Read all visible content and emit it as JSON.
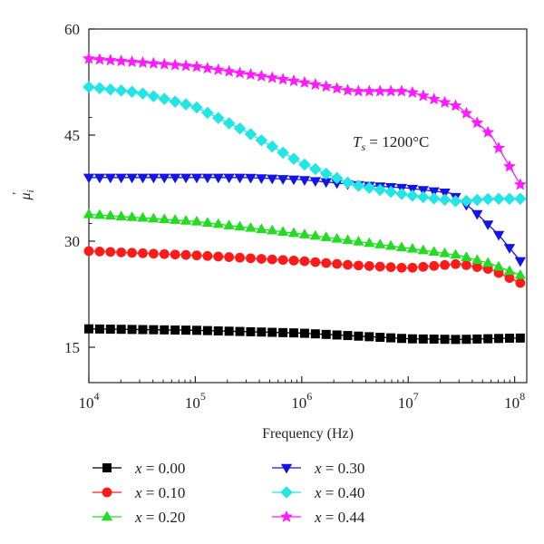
{
  "chart_data": {
    "type": "line",
    "xscale": "log",
    "xlim": [
      10000,
      130000000
    ],
    "ylim": [
      10,
      60
    ],
    "xlabel": "Frequency (Hz)",
    "ylabel": "μ′i",
    "x_ticks": [
      {
        "value": 10000,
        "base": "10",
        "exp": "4"
      },
      {
        "value": 100000,
        "base": "10",
        "exp": "5"
      },
      {
        "value": 1000000,
        "base": "10",
        "exp": "6"
      },
      {
        "value": 10000000,
        "base": "10",
        "exp": "7"
      },
      {
        "value": 100000000,
        "base": "10",
        "exp": "8"
      }
    ],
    "y_ticks": [
      15,
      30,
      45,
      60
    ],
    "annotation": {
      "symbol": "T",
      "sub": "s",
      "rest": " = 1200°C"
    },
    "grid": false,
    "legend_position": "below plot, two columns",
    "series": [
      {
        "name": "x = 0.00",
        "var": "x",
        "value_label": " = 0.00",
        "color": "#000000",
        "marker": "square",
        "points": [
          [
            10000,
            17.6
          ],
          [
            100000,
            17.4
          ],
          [
            1000000,
            17.0
          ],
          [
            10000000,
            16.2
          ],
          [
            30000000,
            16.1
          ],
          [
            100000000,
            16.3
          ],
          [
            113000000,
            16.3
          ]
        ]
      },
      {
        "name": "x = 0.10",
        "var": "x",
        "value_label": " = 0.10",
        "color": "#ff1a1a",
        "marker": "circle",
        "points": [
          [
            10000,
            28.6
          ],
          [
            100000,
            28.0
          ],
          [
            1000000,
            27.2
          ],
          [
            3000000,
            26.6
          ],
          [
            10000000,
            26.2
          ],
          [
            30000000,
            26.8
          ],
          [
            60000000,
            26.0
          ],
          [
            113000000,
            24.1
          ]
        ]
      },
      {
        "name": "x = 0.20",
        "var": "x",
        "value_label": " = 0.20",
        "color": "#22dd22",
        "marker": "triangle-up",
        "points": [
          [
            10000,
            33.8
          ],
          [
            100000,
            32.8
          ],
          [
            1000000,
            31.0
          ],
          [
            10000000,
            29.0
          ],
          [
            30000000,
            28.0
          ],
          [
            60000000,
            26.8
          ],
          [
            113000000,
            25.2
          ]
        ]
      },
      {
        "name": "x = 0.30",
        "var": "x",
        "value_label": " = 0.30",
        "color": "#1414e6",
        "marker": "triangle-down",
        "points": [
          [
            10000,
            39.0
          ],
          [
            300000,
            39.0
          ],
          [
            1000000,
            38.7
          ],
          [
            3000000,
            38.0
          ],
          [
            10000000,
            37.5
          ],
          [
            25000000,
            36.8
          ],
          [
            40000000,
            34.5
          ],
          [
            70000000,
            31.0
          ],
          [
            113000000,
            27.2
          ]
        ]
      },
      {
        "name": "x = 0.40",
        "var": "x",
        "value_label": " = 0.40",
        "color": "#22e5e5",
        "marker": "diamond",
        "points": [
          [
            10000,
            51.8
          ],
          [
            30000,
            51.0
          ],
          [
            100000,
            49.0
          ],
          [
            300000,
            45.5
          ],
          [
            1000000,
            41.0
          ],
          [
            3000000,
            38.0
          ],
          [
            10000000,
            36.5
          ],
          [
            30000000,
            35.6
          ],
          [
            60000000,
            36.0
          ],
          [
            113000000,
            36.0
          ]
        ]
      },
      {
        "name": "x = 0.44",
        "var": "x",
        "value_label": " = 0.44",
        "color": "#ff1aff",
        "marker": "star",
        "points": [
          [
            10000,
            55.8
          ],
          [
            100000,
            54.7
          ],
          [
            1000000,
            52.5
          ],
          [
            3000000,
            51.2
          ],
          [
            10000000,
            51.2
          ],
          [
            30000000,
            49.0
          ],
          [
            60000000,
            45.0
          ],
          [
            90000000,
            40.5
          ],
          [
            113000000,
            38.0
          ]
        ]
      }
    ]
  }
}
